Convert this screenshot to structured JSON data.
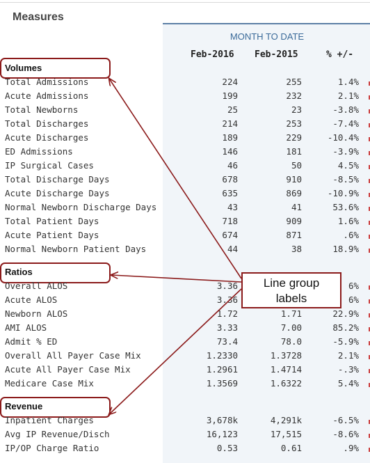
{
  "page": {
    "title": "Measures"
  },
  "header": {
    "section": "MONTH TO DATE",
    "columns": [
      "Feb-2016",
      "Feb-2015",
      "% +/-"
    ]
  },
  "groups": {
    "volumes": {
      "label": "Volumes",
      "rows": [
        {
          "name": "Total Admissions",
          "v1": "224",
          "v2": "255",
          "pct": "1.4%"
        },
        {
          "name": "Acute Admissions",
          "v1": "199",
          "v2": "232",
          "pct": "2.1%"
        },
        {
          "name": "Total Newborns",
          "v1": "25",
          "v2": "23",
          "pct": "-3.8%"
        },
        {
          "name": "Total Discharges",
          "v1": "214",
          "v2": "253",
          "pct": "-7.4%"
        },
        {
          "name": "Acute Discharges",
          "v1": "189",
          "v2": "229",
          "pct": "-10.4%"
        },
        {
          "name": "ED Admissions",
          "v1": "146",
          "v2": "181",
          "pct": "-3.9%"
        },
        {
          "name": "IP Surgical Cases",
          "v1": "46",
          "v2": "50",
          "pct": "4.5%"
        },
        {
          "name": "Total Discharge Days",
          "v1": "678",
          "v2": "910",
          "pct": "-8.5%"
        },
        {
          "name": "Acute Discharge Days",
          "v1": "635",
          "v2": "869",
          "pct": "-10.9%"
        },
        {
          "name": "Normal Newborn Discharge Days",
          "v1": "43",
          "v2": "41",
          "pct": "53.6%"
        },
        {
          "name": "Total Patient Days",
          "v1": "718",
          "v2": "909",
          "pct": "1.6%"
        },
        {
          "name": "Acute Patient Days",
          "v1": "674",
          "v2": "871",
          "pct": ".6%"
        },
        {
          "name": "Normal Newborn Patient Days",
          "v1": "44",
          "v2": "38",
          "pct": "18.9%"
        }
      ]
    },
    "ratios": {
      "label": "Ratios",
      "rows": [
        {
          "name": "Overall ALOS",
          "v1": "3.36",
          "v2": "",
          "pct": "6%"
        },
        {
          "name": "Acute ALOS",
          "v1": "3.36",
          "v2": "",
          "pct": "6%"
        },
        {
          "name": "Newborn ALOS",
          "v1": "1.72",
          "v2": "1.71",
          "pct": "22.9%"
        },
        {
          "name": "AMI ALOS",
          "v1": "3.33",
          "v2": "7.00",
          "pct": "85.2%"
        },
        {
          "name": "Admit % ED",
          "v1": "73.4",
          "v2": "78.0",
          "pct": "-5.9%"
        },
        {
          "name": "Overall All Payer Case Mix",
          "v1": "1.2330",
          "v2": "1.3728",
          "pct": "2.1%"
        },
        {
          "name": "Acute All Payer Case Mix",
          "v1": "1.2961",
          "v2": "1.4714",
          "pct": "-.3%"
        },
        {
          "name": "Medicare Case Mix",
          "v1": "1.3569",
          "v2": "1.6322",
          "pct": "5.4%"
        }
      ]
    },
    "revenue": {
      "label": "Revenue",
      "rows": [
        {
          "name": "Inpatient Charges",
          "v1": "3,678k",
          "v2": "4,291k",
          "pct": "-6.5%"
        },
        {
          "name": "Avg IP Revenue/Disch",
          "v1": "16,123",
          "v2": "17,515",
          "pct": "-8.6%"
        },
        {
          "name": "IP/OP Charge Ratio",
          "v1": "0.53",
          "v2": "0.61",
          "pct": ".9%"
        }
      ]
    }
  },
  "callout": {
    "line1": "Line group",
    "line2": "labels"
  },
  "colors": {
    "accent": "#8b1a1a",
    "header_blue": "#3a6a99",
    "panel": "#f1f5f9"
  }
}
